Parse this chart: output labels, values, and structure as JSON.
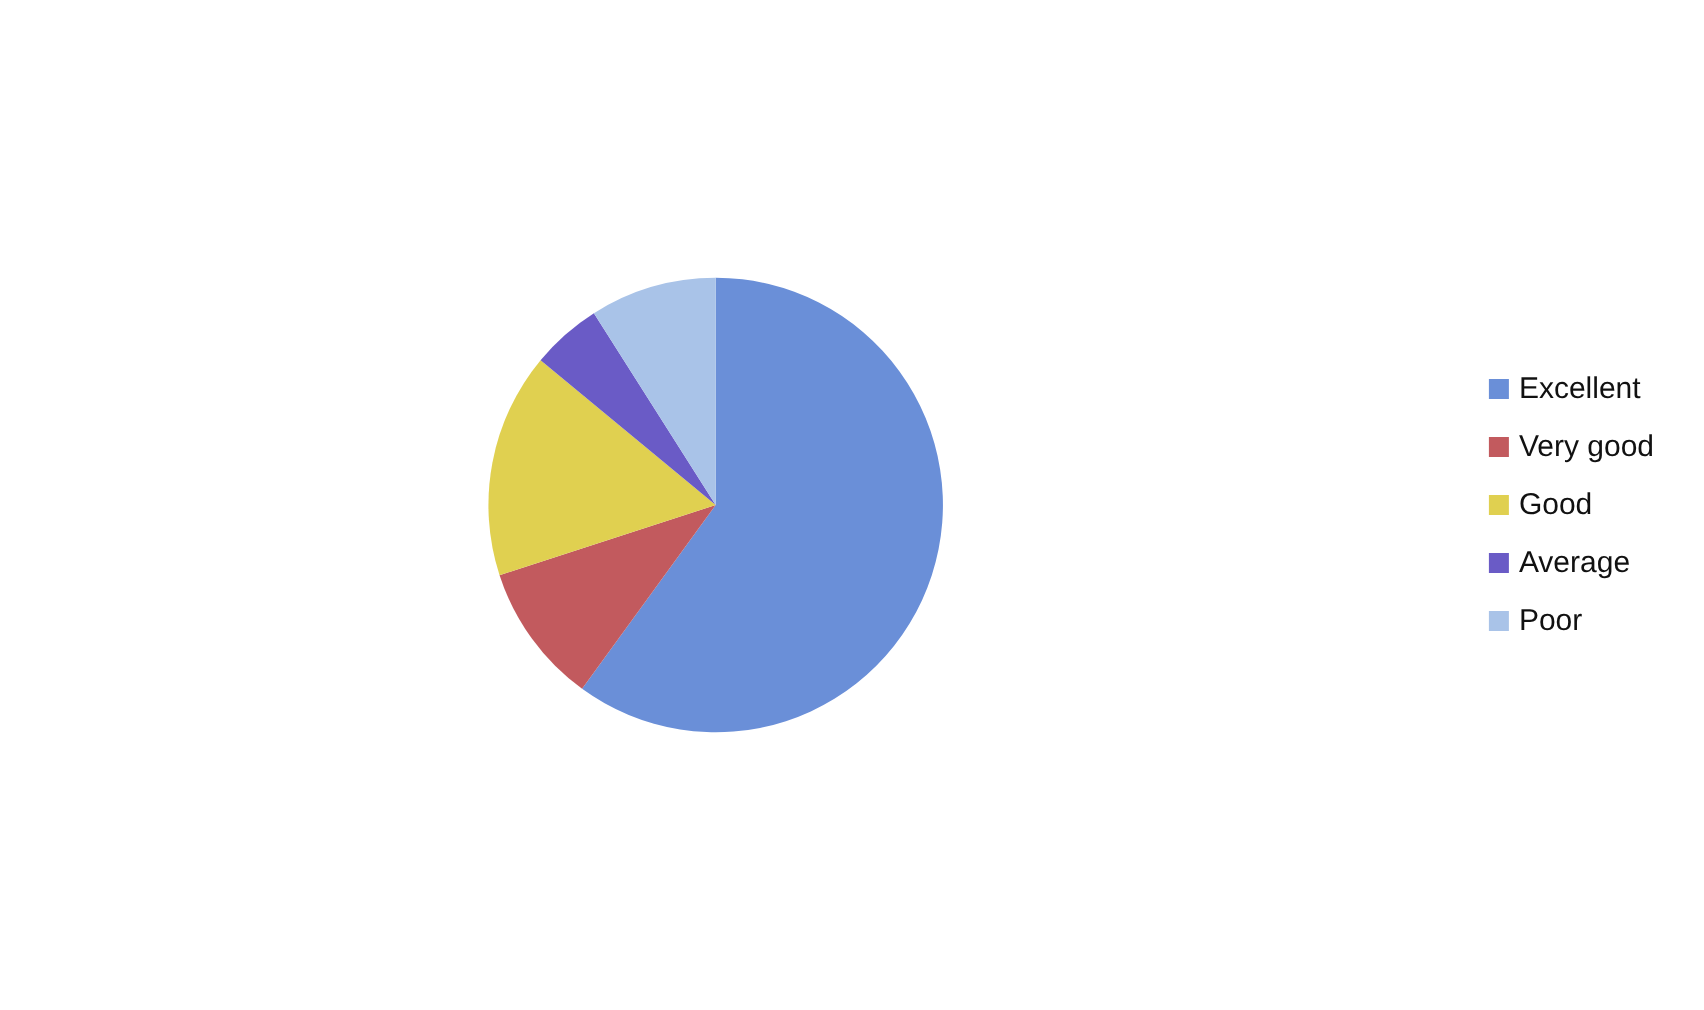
{
  "chart_data": {
    "type": "pie",
    "categories": [
      "Excellent",
      "Very good",
      "Good",
      "Average",
      "Poor"
    ],
    "values": [
      60,
      10,
      16,
      5,
      9
    ],
    "colors": [
      "#6a8fd8",
      "#c25a5e",
      "#e0d050",
      "#6a5bc6",
      "#a9c3e8"
    ],
    "legend": "right"
  }
}
